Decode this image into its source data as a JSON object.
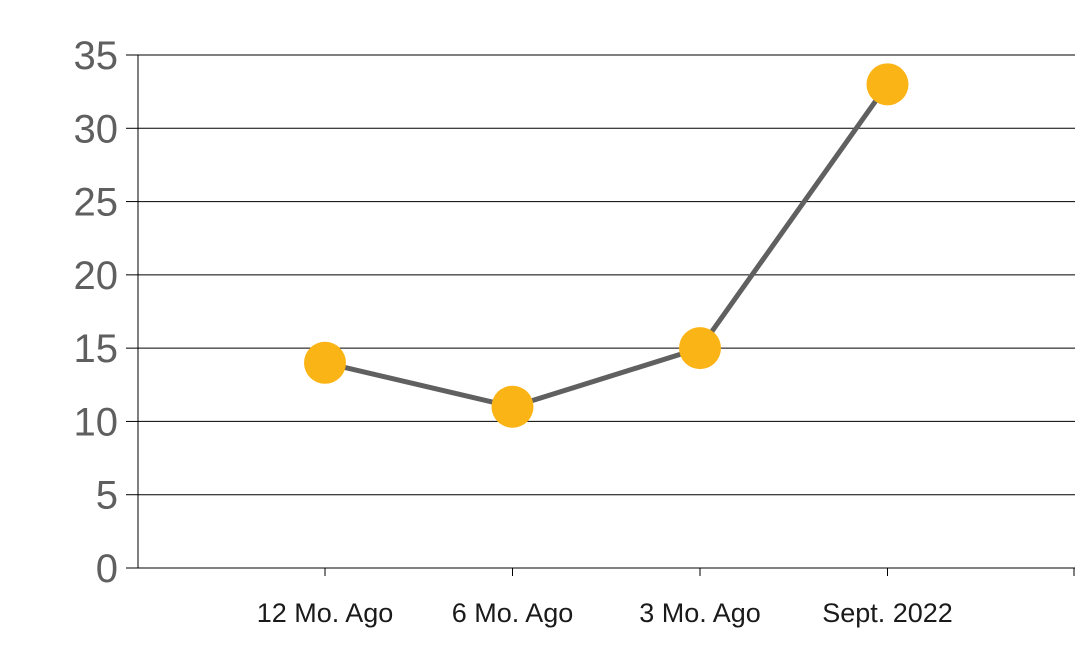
{
  "chart_data": {
    "type": "line",
    "categories": [
      "12 Mo. Ago",
      "6 Mo. Ago",
      "3 Mo. Ago",
      "Sept. 2022"
    ],
    "series": [
      {
        "values": [
          14,
          11,
          15,
          33
        ]
      }
    ],
    "yticks": [
      "0",
      "5",
      "10",
      "15",
      "20",
      "25",
      "30",
      "35"
    ],
    "ylim": [
      0,
      35
    ],
    "grid": true,
    "legend": "none",
    "colors": {
      "line": "#606060",
      "marker": "#FBB416",
      "grid": "#000000",
      "axis_text": "#5f5f5f",
      "category_text": "#1a1a1a"
    }
  }
}
